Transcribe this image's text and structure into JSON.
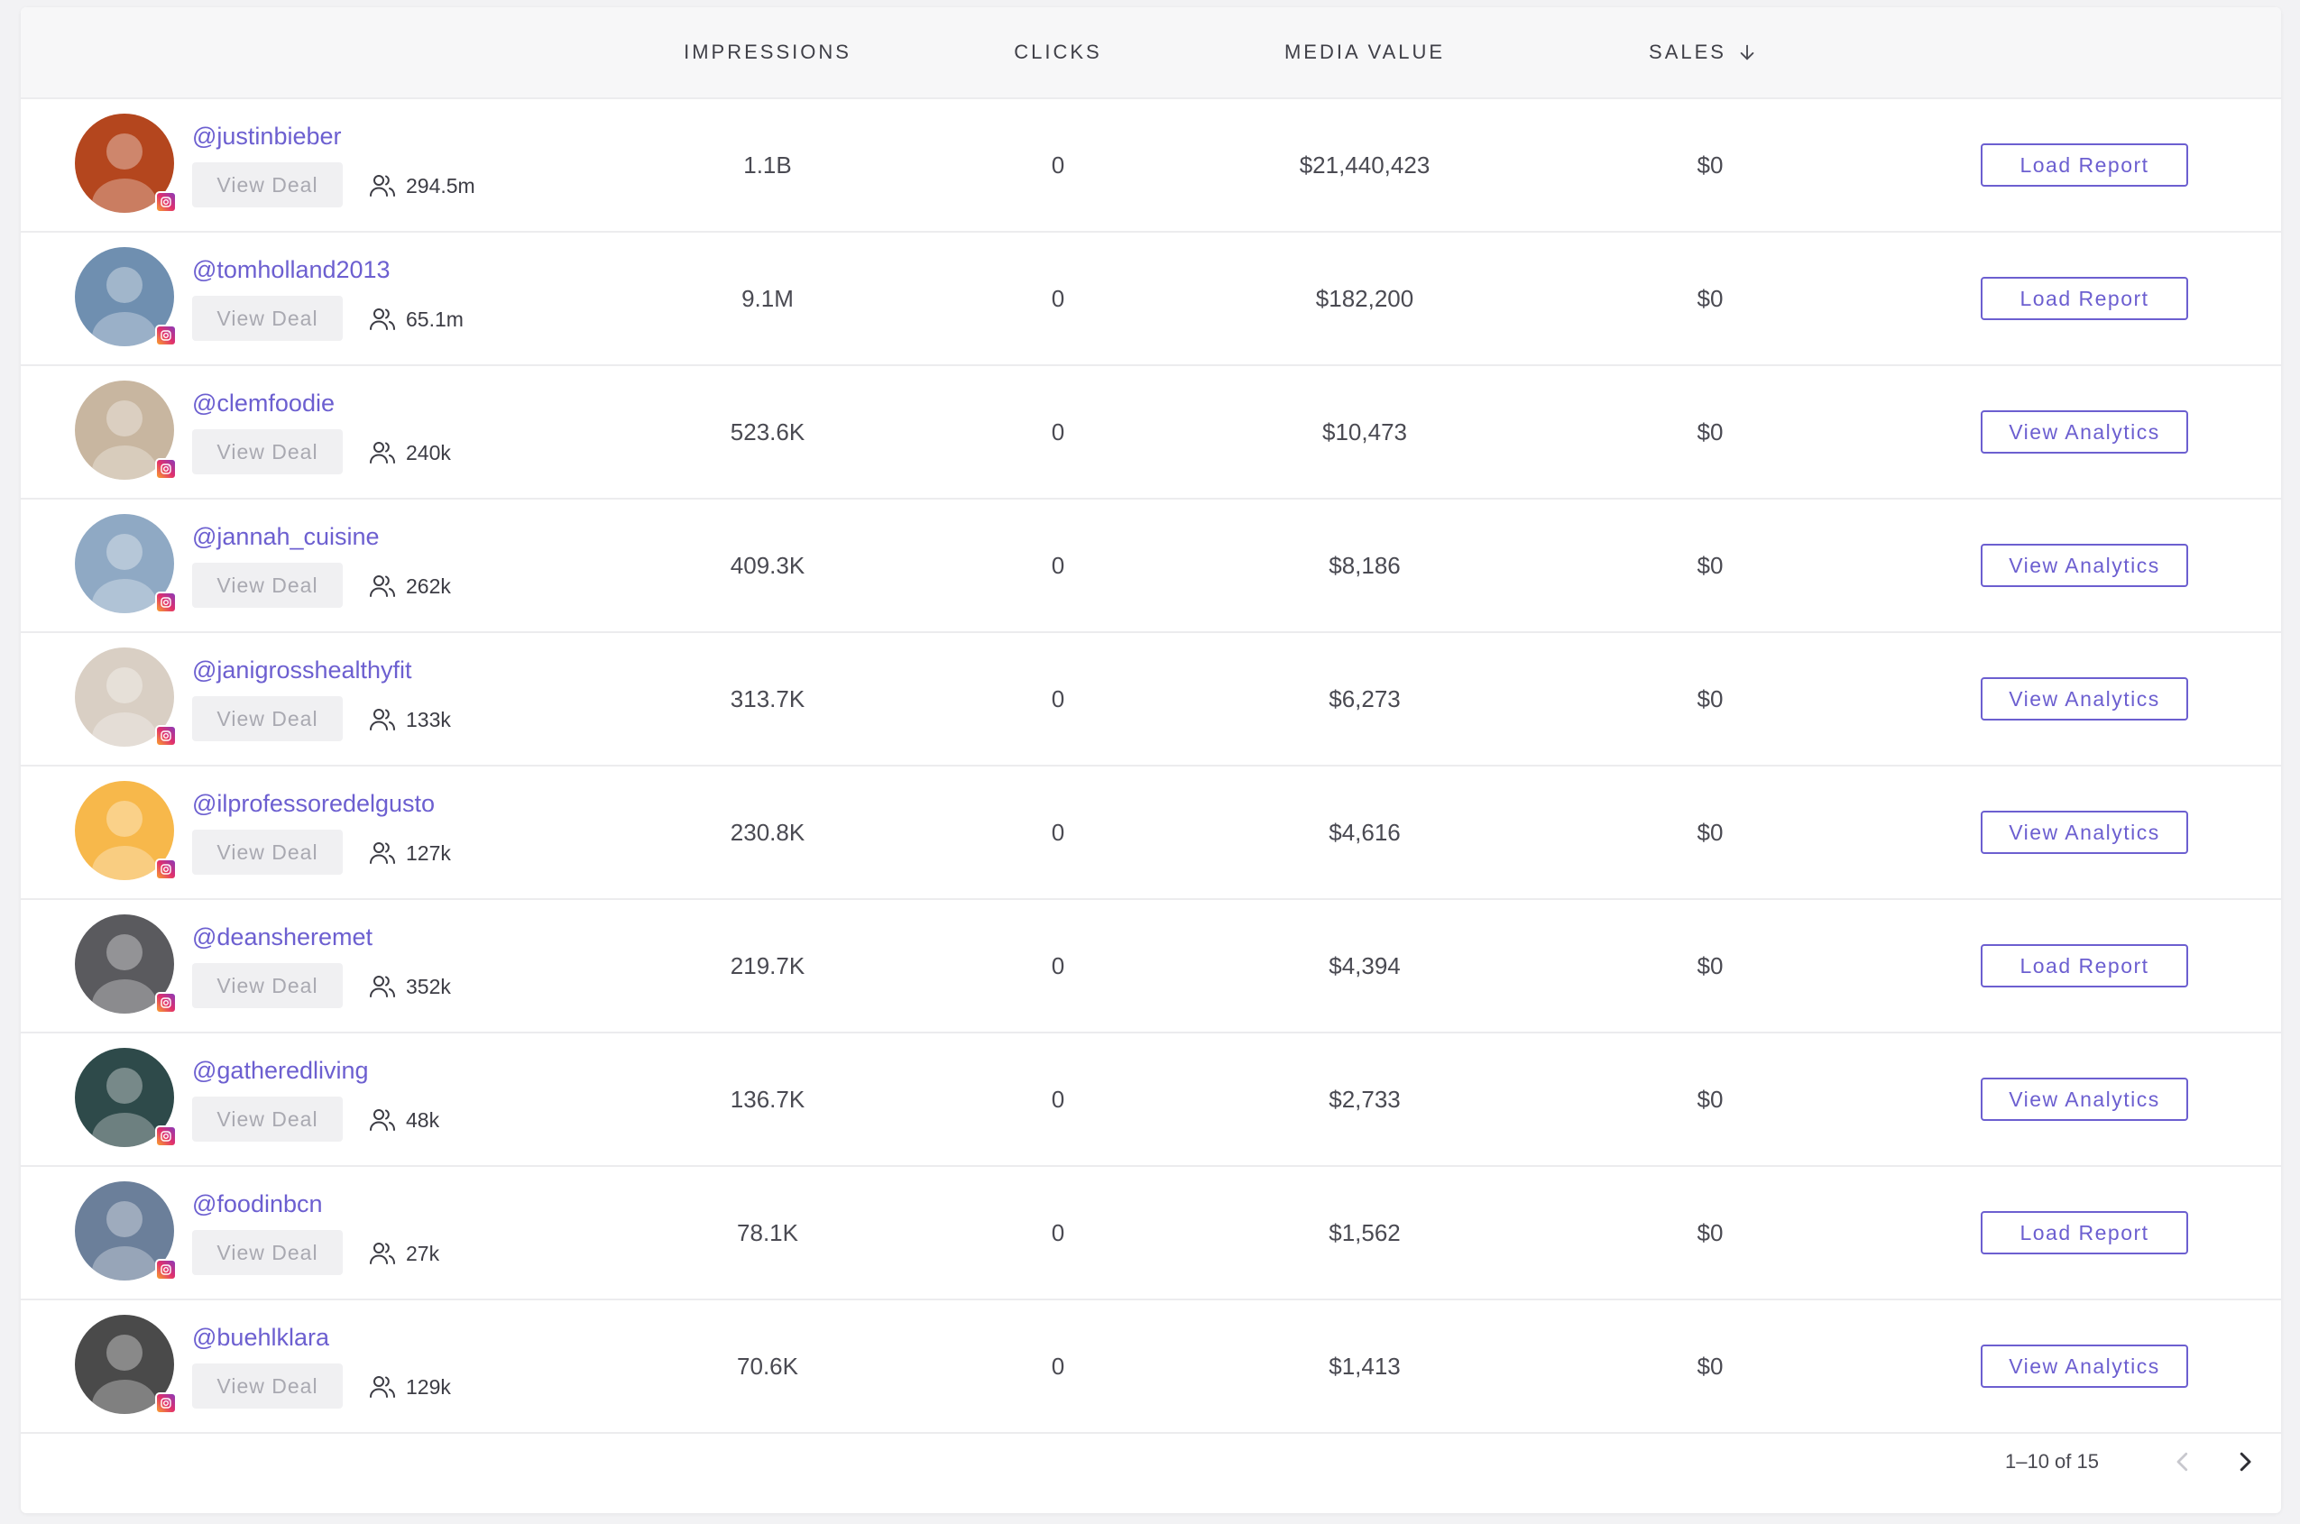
{
  "table": {
    "columns": {
      "impressions": "IMPRESSIONS",
      "clicks": "CLICKS",
      "media_value": "MEDIA VALUE",
      "sales": "SALES"
    },
    "sort_icon": "arrow-down-icon",
    "rows": [
      {
        "handle": "@justinbieber",
        "view_deal": "View Deal",
        "followers": "294.5m",
        "impressions": "1.1B",
        "clicks": "0",
        "media_value": "$21,440,423",
        "sales": "$0",
        "action": "Load Report",
        "avatar_color": "#b4461e"
      },
      {
        "handle": "@tomholland2013",
        "view_deal": "View Deal",
        "followers": "65.1m",
        "impressions": "9.1M",
        "clicks": "0",
        "media_value": "$182,200",
        "sales": "$0",
        "action": "Load Report",
        "avatar_color": "#6f8fb0"
      },
      {
        "handle": "@clemfoodie",
        "view_deal": "View Deal",
        "followers": "240k",
        "impressions": "523.6K",
        "clicks": "0",
        "media_value": "$10,473",
        "sales": "$0",
        "action": "View Analytics",
        "avatar_color": "#c8b6a0"
      },
      {
        "handle": "@jannah_cuisine",
        "view_deal": "View Deal",
        "followers": "262k",
        "impressions": "409.3K",
        "clicks": "0",
        "media_value": "$8,186",
        "sales": "$0",
        "action": "View Analytics",
        "avatar_color": "#8fa9c4"
      },
      {
        "handle": "@janigrosshealthyfit",
        "view_deal": "View Deal",
        "followers": "133k",
        "impressions": "313.7K",
        "clicks": "0",
        "media_value": "$6,273",
        "sales": "$0",
        "action": "View Analytics",
        "avatar_color": "#d9cfc4"
      },
      {
        "handle": "@ilprofessoredelgusto",
        "view_deal": "View Deal",
        "followers": "127k",
        "impressions": "230.8K",
        "clicks": "0",
        "media_value": "$4,616",
        "sales": "$0",
        "action": "View Analytics",
        "avatar_color": "#f7b84b"
      },
      {
        "handle": "@deansheremet",
        "view_deal": "View Deal",
        "followers": "352k",
        "impressions": "219.7K",
        "clicks": "0",
        "media_value": "$4,394",
        "sales": "$0",
        "action": "Load Report",
        "avatar_color": "#5a5a5e"
      },
      {
        "handle": "@gatheredliving",
        "view_deal": "View Deal",
        "followers": "48k",
        "impressions": "136.7K",
        "clicks": "0",
        "media_value": "$2,733",
        "sales": "$0",
        "action": "View Analytics",
        "avatar_color": "#2e4a4a"
      },
      {
        "handle": "@foodinbcn",
        "view_deal": "View Deal",
        "followers": "27k",
        "impressions": "78.1K",
        "clicks": "0",
        "media_value": "$1,562",
        "sales": "$0",
        "action": "Load Report",
        "avatar_color": "#6b7f9a"
      },
      {
        "handle": "@buehlklara",
        "view_deal": "View Deal",
        "followers": "129k",
        "impressions": "70.6K",
        "clicks": "0",
        "media_value": "$1,413",
        "sales": "$0",
        "action": "View Analytics",
        "avatar_color": "#4a4a4a"
      }
    ]
  },
  "pagination": {
    "range_label": "1–10 of 15",
    "prev_icon": "chevron-left-icon",
    "next_icon": "chevron-right-icon"
  },
  "colors": {
    "accent": "#6c5fd0",
    "header_bg": "#f7f7f8",
    "divider": "#ececee"
  }
}
